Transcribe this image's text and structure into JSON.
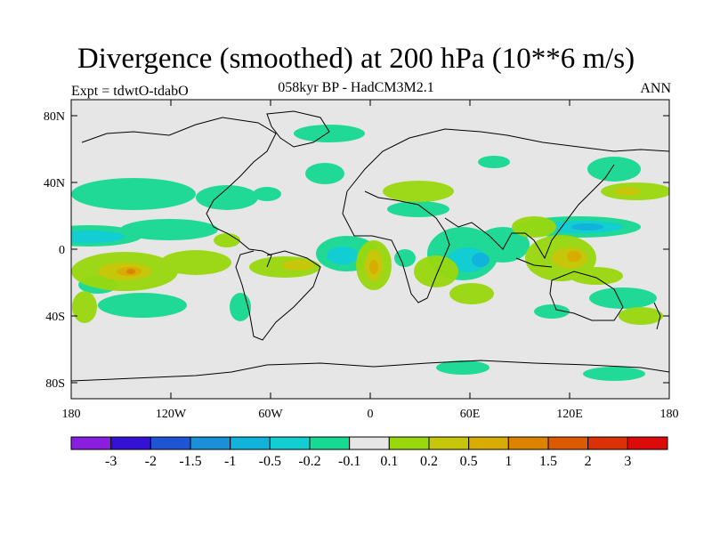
{
  "header": {
    "title": "Divergence (smoothed) at 200 hPa (10**6 m/s)",
    "subtitle": "058kyr BP - HadCM3M2.1",
    "experiment": "Expt = tdwtO-tdabO",
    "season": "ANN"
  },
  "map": {
    "latitude_labels": [
      "80N",
      "40N",
      "0",
      "40S",
      "80S"
    ],
    "longitude_labels": [
      "180",
      "120W",
      "60W",
      "0",
      "60E",
      "120E",
      "180"
    ],
    "background_color": "#e6e6e6",
    "coastline_color": "#000000"
  },
  "colorbar": {
    "colors": [
      "#8a1ee0",
      "#3312d6",
      "#1f55d4",
      "#1990d8",
      "#10b3d9",
      "#12cdd1",
      "#16d993",
      "#e6e6e6",
      "#9ad80e",
      "#c6c60a",
      "#d8ac02",
      "#dc8400",
      "#dc5a02",
      "#dc3006",
      "#dc0a0a"
    ],
    "tick_labels": [
      "-3",
      "-2",
      "-1.5",
      "-1",
      "-0.5",
      "-0.2",
      "-0.1",
      "0.1",
      "0.2",
      "0.5",
      "1",
      "1.5",
      "2",
      "3"
    ]
  }
}
